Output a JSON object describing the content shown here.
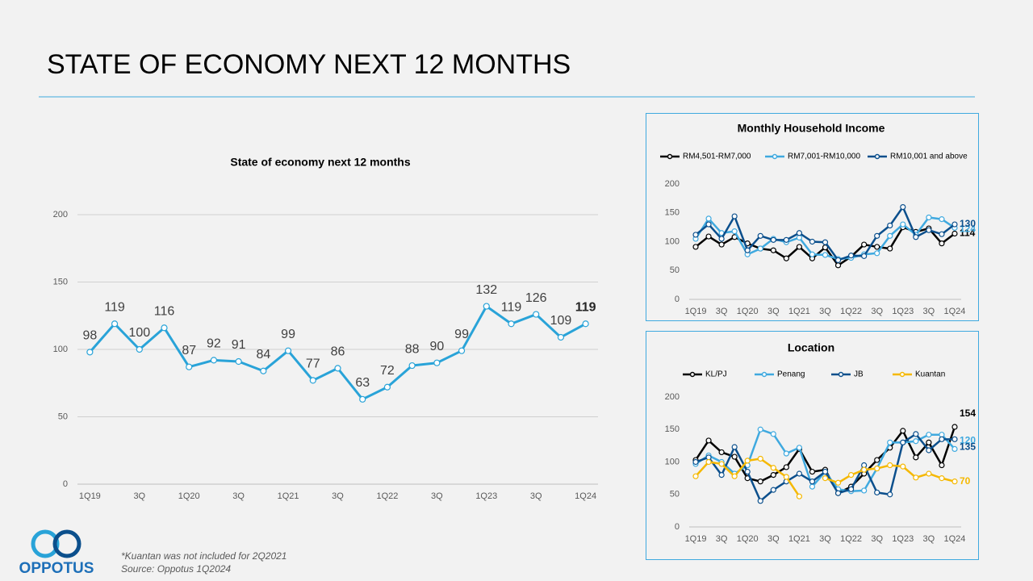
{
  "title": "STATE OF ECONOMY NEXT 12 MONTHS",
  "chart_data": [
    {
      "type": "line",
      "title": "State of economy next 12 months",
      "categories": [
        "1Q19",
        null,
        "3Q",
        null,
        "1Q20",
        null,
        "3Q",
        null,
        "1Q21",
        null,
        "3Q",
        null,
        "1Q22",
        null,
        "3Q",
        null,
        "1Q23",
        null,
        "3Q",
        null,
        "1Q24"
      ],
      "series": [
        {
          "color": "#29a3d8",
          "values": [
            98,
            119,
            100,
            116,
            87,
            92,
            91,
            84,
            99,
            77,
            86,
            63,
            72,
            88,
            90,
            99,
            132,
            119,
            126,
            109,
            119
          ]
        }
      ],
      "ylim": [
        0,
        200
      ],
      "yticks": [
        0,
        50,
        100,
        150,
        200
      ],
      "grid": true,
      "value_labels_shown": "all"
    },
    {
      "type": "line",
      "title": "Monthly Household Income",
      "categories": [
        "1Q19",
        null,
        "3Q",
        null,
        "1Q20",
        null,
        "3Q",
        null,
        "1Q21",
        null,
        "3Q",
        null,
        "1Q22",
        null,
        "3Q",
        null,
        "1Q23",
        null,
        "3Q",
        null,
        "1Q24"
      ],
      "series": [
        {
          "name": "RM4,501-RM7,000",
          "color": "#000000",
          "values": [
            91,
            109,
            95,
            108,
            97,
            88,
            85,
            71,
            91,
            71,
            90,
            59,
            74,
            95,
            91,
            88,
            125,
            117,
            123,
            97,
            114
          ]
        },
        {
          "name": "RM7,001-RM10,000",
          "color": "#3fa9df",
          "values": [
            105,
            140,
            115,
            118,
            78,
            88,
            105,
            99,
            107,
            78,
            77,
            70,
            72,
            78,
            80,
            110,
            130,
            112,
            142,
            139,
            124
          ]
        },
        {
          "name": "RM10,001 and above",
          "color": "#0b4f8c",
          "values": [
            112,
            130,
            105,
            144,
            85,
            110,
            103,
            103,
            115,
            100,
            99,
            68,
            76,
            75,
            110,
            128,
            160,
            108,
            120,
            113,
            130
          ]
        }
      ],
      "ylim": [
        0,
        200
      ],
      "yticks": [
        0,
        50,
        100,
        150,
        200
      ],
      "grid": false,
      "legend": "top",
      "value_labels_shown": "last"
    },
    {
      "type": "line",
      "title": "Location",
      "categories": [
        "1Q19",
        null,
        "3Q",
        null,
        "1Q20",
        null,
        "3Q",
        null,
        "1Q21",
        null,
        "3Q",
        null,
        "1Q22",
        null,
        "3Q",
        null,
        "1Q23",
        null,
        "3Q",
        null,
        "1Q24"
      ],
      "series": [
        {
          "name": "KL/PJ",
          "color": "#000000",
          "values": [
            103,
            133,
            115,
            108,
            75,
            70,
            80,
            92,
            120,
            85,
            88,
            52,
            62,
            82,
            103,
            122,
            148,
            107,
            130,
            95,
            154
          ]
        },
        {
          "name": "Penang",
          "color": "#3fa9df",
          "values": [
            97,
            110,
            100,
            82,
            95,
            150,
            143,
            113,
            122,
            62,
            85,
            58,
            55,
            56,
            90,
            130,
            130,
            132,
            142,
            142,
            120
          ]
        },
        {
          "name": "JB",
          "color": "#0b4f8c",
          "values": [
            100,
            107,
            80,
            123,
            85,
            40,
            57,
            70,
            82,
            70,
            85,
            52,
            58,
            95,
            53,
            50,
            130,
            143,
            118,
            135,
            135
          ]
        },
        {
          "name": "Kuantan",
          "color": "#f5b800",
          "values": [
            78,
            100,
            97,
            78,
            102,
            105,
            91,
            77,
            47,
            null,
            75,
            68,
            80,
            88,
            90,
            95,
            93,
            76,
            82,
            75,
            70
          ]
        }
      ],
      "ylim": [
        0,
        200
      ],
      "yticks": [
        0,
        50,
        100,
        150,
        200
      ],
      "grid": false,
      "legend": "top",
      "value_labels_shown": "last"
    }
  ],
  "footnotes": [
    "*Kuantan was not included for 2Q2021",
    "Source: Oppotus 1Q2024"
  ],
  "logo": "OPPOTUS"
}
